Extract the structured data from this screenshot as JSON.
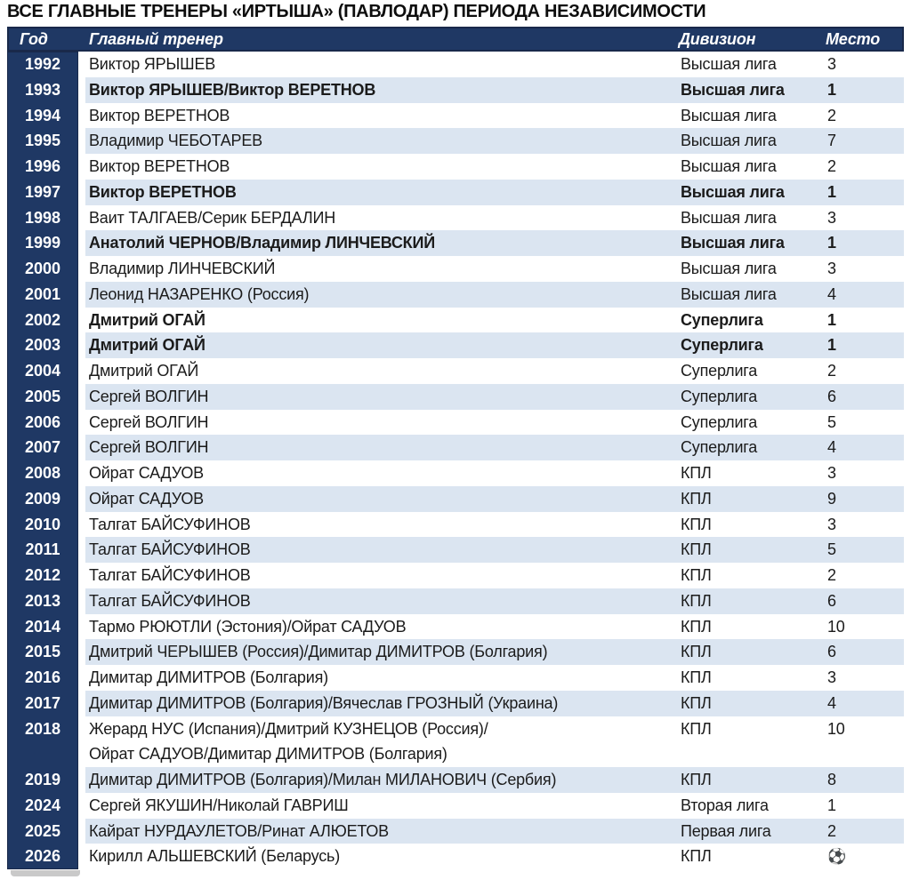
{
  "title": "ВСЕ ГЛАВНЫЕ ТРЕНЕРЫ «ИРТЫША» (ПАВЛОДАР) ПЕРИОДА НЕЗАВИСИМОСТИ",
  "colors": {
    "header_navy": "#1f3864",
    "header_border": "#19294a",
    "row_shade_blue": "#dbe5f1",
    "row_white": "#ffffff",
    "header_text": "#ffffff",
    "body_text": "#1b1b1b"
  },
  "chart_data": {
    "type": "table",
    "title": "ВСЕ ГЛАВНЫЕ ТРЕНЕРЫ «ИРТЫША» (ПАВЛОДАР) ПЕРИОДА НЕЗАВИСИМОСТИ",
    "columns": [
      "Год",
      "Главный тренер",
      "Дивизион",
      "Место"
    ],
    "rows": [
      {
        "year": "1992",
        "coach": [
          "Виктор ЯРЫШЕВ"
        ],
        "division": "Высшая лига",
        "place": "3",
        "bold": false,
        "shade": false
      },
      {
        "year": "1993",
        "coach": [
          "Виктор ЯРЫШЕВ/Виктор ВЕРЕТНОВ"
        ],
        "division": "Высшая лига",
        "place": "1",
        "bold": true,
        "shade": true
      },
      {
        "year": "1994",
        "coach": [
          "Виктор ВЕРЕТНОВ"
        ],
        "division": "Высшая лига",
        "place": "2",
        "bold": false,
        "shade": false
      },
      {
        "year": "1995",
        "coach": [
          "Владимир ЧЕБОТАРЕВ"
        ],
        "division": "Высшая лига",
        "place": "7",
        "bold": false,
        "shade": true
      },
      {
        "year": "1996",
        "coach": [
          "Виктор ВЕРЕТНОВ"
        ],
        "division": "Высшая лига",
        "place": "2",
        "bold": false,
        "shade": false
      },
      {
        "year": "1997",
        "coach": [
          "Виктор ВЕРЕТНОВ"
        ],
        "division": "Высшая лига",
        "place": "1",
        "bold": true,
        "shade": true
      },
      {
        "year": "1998",
        "coach": [
          "Ваит ТАЛГАЕВ/Серик БЕРДАЛИН"
        ],
        "division": "Высшая лига",
        "place": "3",
        "bold": false,
        "shade": false
      },
      {
        "year": "1999",
        "coach": [
          "Анатолий ЧЕРНОВ/Владимир ЛИНЧЕВСКИЙ"
        ],
        "division": "Высшая лига",
        "place": "1",
        "bold": true,
        "shade": true
      },
      {
        "year": "2000",
        "coach": [
          "Владимир ЛИНЧЕВСКИЙ"
        ],
        "division": "Высшая лига",
        "place": "3",
        "bold": false,
        "shade": false
      },
      {
        "year": "2001",
        "coach": [
          "Леонид НАЗАРЕНКО (Россия)"
        ],
        "division": "Высшая лига",
        "place": "4",
        "bold": false,
        "shade": true
      },
      {
        "year": "2002",
        "coach": [
          "Дмитрий ОГАЙ"
        ],
        "division": "Суперлига",
        "place": "1",
        "bold": true,
        "shade": false
      },
      {
        "year": "2003",
        "coach": [
          "Дмитрий ОГАЙ"
        ],
        "division": "Суперлига",
        "place": "1",
        "bold": true,
        "shade": true
      },
      {
        "year": "2004",
        "coach": [
          "Дмитрий ОГАЙ"
        ],
        "division": "Суперлига",
        "place": "2",
        "bold": false,
        "shade": false
      },
      {
        "year": "2005",
        "coach": [
          "Сергей ВОЛГИН"
        ],
        "division": "Суперлига",
        "place": "6",
        "bold": false,
        "shade": true
      },
      {
        "year": "2006",
        "coach": [
          "Сергей ВОЛГИН"
        ],
        "division": "Суперлига",
        "place": "5",
        "bold": false,
        "shade": false
      },
      {
        "year": "2007",
        "coach": [
          "Сергей ВОЛГИН"
        ],
        "division": "Суперлига",
        "place": "4",
        "bold": false,
        "shade": true
      },
      {
        "year": "2008",
        "coach": [
          "Ойрат САДУОВ"
        ],
        "division": "КПЛ",
        "place": "3",
        "bold": false,
        "shade": false
      },
      {
        "year": "2009",
        "coach": [
          "Ойрат САДУОВ"
        ],
        "division": "КПЛ",
        "place": "9",
        "bold": false,
        "shade": true
      },
      {
        "year": "2010",
        "coach": [
          "Талгат БАЙСУФИНОВ"
        ],
        "division": "КПЛ",
        "place": "3",
        "bold": false,
        "shade": false
      },
      {
        "year": "2011",
        "coach": [
          "Талгат БАЙСУФИНОВ"
        ],
        "division": "КПЛ",
        "place": "5",
        "bold": false,
        "shade": true
      },
      {
        "year": "2012",
        "coach": [
          "Талгат БАЙСУФИНОВ"
        ],
        "division": "КПЛ",
        "place": "2",
        "bold": false,
        "shade": false
      },
      {
        "year": "2013",
        "coach": [
          "Талгат БАЙСУФИНОВ"
        ],
        "division": "КПЛ",
        "place": "6",
        "bold": false,
        "shade": true
      },
      {
        "year": "2014",
        "coach": [
          "Тармо РЮЮТЛИ (Эстония)/Ойрат САДУОВ"
        ],
        "division": "КПЛ",
        "place": "10",
        "bold": false,
        "shade": false
      },
      {
        "year": "2015",
        "coach": [
          "Дмитрий ЧЕРЫШЕВ (Россия)/Димитар ДИМИТРОВ (Болгария)"
        ],
        "division": "КПЛ",
        "place": "6",
        "bold": false,
        "shade": true
      },
      {
        "year": "2016",
        "coach": [
          "Димитар ДИМИТРОВ (Болгария)"
        ],
        "division": "КПЛ",
        "place": "3",
        "bold": false,
        "shade": false
      },
      {
        "year": "2017",
        "coach": [
          "Димитар ДИМИТРОВ (Болгария)/Вячеслав ГРОЗНЫЙ (Украина)"
        ],
        "division": "КПЛ",
        "place": "4",
        "bold": false,
        "shade": true
      },
      {
        "year": "2018",
        "coach": [
          "Жерард НУС (Испания)/Дмитрий КУЗНЕЦОВ (Россия)/",
          "Ойрат САДУОВ/Димитар ДИМИТРОВ (Болгария)"
        ],
        "division": "КПЛ",
        "place": "10",
        "bold": false,
        "shade": false
      },
      {
        "year": "2019",
        "coach": [
          "Димитар ДИМИТРОВ (Болгария)/Милан МИЛАНОВИЧ (Сербия)"
        ],
        "division": "КПЛ",
        "place": "8",
        "bold": false,
        "shade": true
      },
      {
        "year": "2024",
        "coach": [
          "Сергей ЯКУШИН/Николай ГАВРИШ"
        ],
        "division": "Вторая лига",
        "place": "1",
        "bold": false,
        "shade": false
      },
      {
        "year": "2025",
        "coach": [
          "Кайрат НУРДАУЛЕТОВ/Ринат АЛЮЕТОВ"
        ],
        "division": "Первая лига",
        "place": "2",
        "bold": false,
        "shade": true
      },
      {
        "year": "2026",
        "coach": [
          "Кирилл АЛЬШЕВСКИЙ (Беларусь)"
        ],
        "division": "КПЛ",
        "place": "⚽",
        "place_icon": "soccer-ball-icon",
        "bold": false,
        "shade": false
      }
    ]
  }
}
